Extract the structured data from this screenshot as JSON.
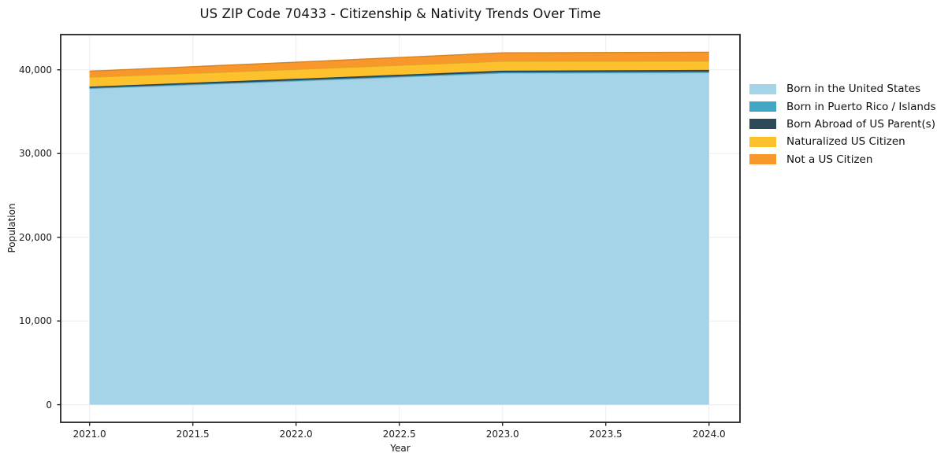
{
  "chart_data": {
    "type": "area",
    "stacked": true,
    "title": "US ZIP Code 70433 - Citizenship & Nativity Trends Over Time",
    "xlabel": "Year",
    "ylabel": "Population",
    "x": [
      2021,
      2022,
      2023,
      2024
    ],
    "series": [
      {
        "name": "Born in the United States",
        "values": [
          37750,
          38650,
          39600,
          39650
        ],
        "color": "#a5d3e8"
      },
      {
        "name": "Born in Puerto Rico / Islands",
        "values": [
          90,
          100,
          110,
          130
        ],
        "color": "#41a7c4"
      },
      {
        "name": "Born Abroad of US Parent(s)",
        "values": [
          150,
          180,
          190,
          210
        ],
        "color": "#2d4a58"
      },
      {
        "name": "Naturalized US Citizen",
        "values": [
          1130,
          1130,
          1130,
          1050
        ],
        "color": "#fcc12d"
      },
      {
        "name": "Not a US Citizen",
        "values": [
          720,
          850,
          1000,
          1060
        ],
        "color": "#f8982a"
      }
    ],
    "totals": [
      39840,
      40910,
      42030,
      42100
    ],
    "xlim": [
      2020.86,
      2024.15
    ],
    "ylim": [
      -2105,
      44205
    ],
    "xticks": {
      "values": [
        2021.0,
        2021.5,
        2022.0,
        2022.5,
        2023.0,
        2023.5,
        2024.0
      ],
      "labels": [
        "2021.0",
        "2021.5",
        "2022.0",
        "2022.5",
        "2023.0",
        "2023.5",
        "2024.0"
      ]
    },
    "yticks": {
      "values": [
        0,
        10000,
        20000,
        30000,
        40000
      ],
      "labels": [
        "0",
        "10,000",
        "20,000",
        "30,000",
        "40,000"
      ]
    },
    "grid": true,
    "grid_color": "#ececec",
    "spine_color": "#222222",
    "legend_position": "right outside"
  }
}
